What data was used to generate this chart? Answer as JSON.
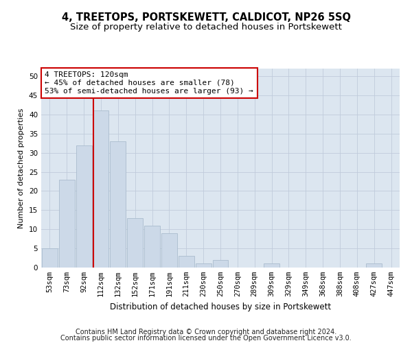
{
  "title": "4, TREETOPS, PORTSKEWETT, CALDICOT, NP26 5SQ",
  "subtitle": "Size of property relative to detached houses in Portskewett",
  "xlabel": "Distribution of detached houses by size in Portskewett",
  "ylabel": "Number of detached properties",
  "categories": [
    "53sqm",
    "73sqm",
    "92sqm",
    "112sqm",
    "132sqm",
    "152sqm",
    "171sqm",
    "191sqm",
    "211sqm",
    "230sqm",
    "250sqm",
    "270sqm",
    "289sqm",
    "309sqm",
    "329sqm",
    "349sqm",
    "368sqm",
    "388sqm",
    "408sqm",
    "427sqm",
    "447sqm"
  ],
  "values": [
    5,
    23,
    32,
    41,
    33,
    13,
    11,
    9,
    3,
    1,
    2,
    0,
    0,
    1,
    0,
    0,
    0,
    0,
    0,
    1,
    0
  ],
  "bar_color": "#ccd9e8",
  "bar_edge_color": "#aabcce",
  "vline_color": "#cc0000",
  "vline_index": 3,
  "annotation_text": "4 TREETOPS: 120sqm\n← 45% of detached houses are smaller (78)\n53% of semi-detached houses are larger (93) →",
  "annotation_box_facecolor": "#ffffff",
  "annotation_box_edgecolor": "#cc0000",
  "ylim": [
    0,
    52
  ],
  "yticks": [
    0,
    5,
    10,
    15,
    20,
    25,
    30,
    35,
    40,
    45,
    50
  ],
  "grid_color": "#c0cbdb",
  "background_color": "#dce6f0",
  "footer_line1": "Contains HM Land Registry data © Crown copyright and database right 2024.",
  "footer_line2": "Contains public sector information licensed under the Open Government Licence v3.0.",
  "title_fontsize": 10.5,
  "subtitle_fontsize": 9.5,
  "xlabel_fontsize": 8.5,
  "ylabel_fontsize": 8,
  "tick_fontsize": 7.5,
  "annotation_fontsize": 8,
  "footer_fontsize": 7
}
